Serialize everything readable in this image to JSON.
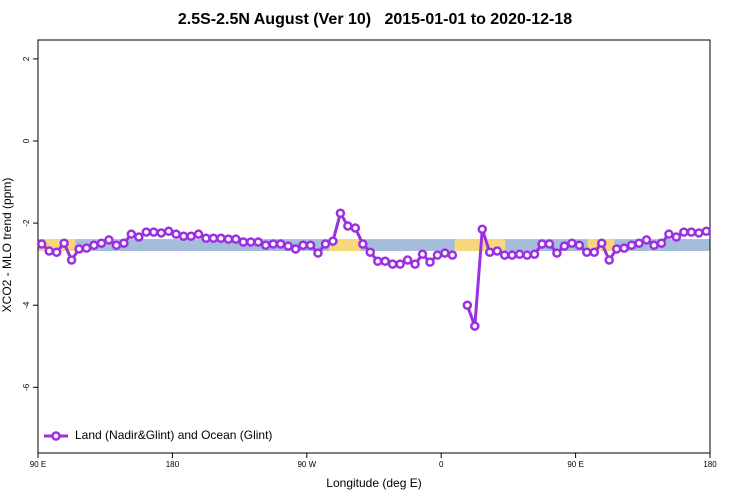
{
  "chart_data": {
    "type": "line",
    "title": "2.5S-2.5N August (Ver 10)   2015-01-01 to 2020-12-18",
    "x_label": "Longitude (deg E)",
    "y_label": "XCO2 - MLO trend (ppm)",
    "xlim": [
      90,
      540
    ],
    "xticks": [
      {
        "value": 90,
        "label": "90 E"
      },
      180,
      {
        "value": 270,
        "label": "90 W"
      },
      {
        "value": 360,
        "label": "0"
      },
      {
        "value": 450,
        "label": "90 E"
      },
      {
        "value": 540,
        "label": "180"
      }
    ],
    "ylim": [
      -7.6,
      2.46
    ],
    "yticks": [
      2,
      0,
      -2,
      -4,
      -6
    ],
    "legend_position": "bottom-left",
    "background_band": {
      "ylim": [
        -2.68,
        -2.39
      ],
      "color": "#a6bcdb",
      "land_color": "#f8d77c",
      "land_ranges": [
        [
          91,
          115
        ],
        [
          285,
          306
        ],
        [
          369,
          403
        ],
        [
          458,
          476
        ]
      ]
    },
    "x": [
      92.5,
      97.5,
      102.5,
      107.5,
      112.5,
      117.5,
      122.5,
      127.5,
      132.5,
      137.5,
      142.5,
      147.5,
      152.5,
      157.5,
      162.5,
      167.5,
      172.5,
      177.5,
      182.5,
      187.5,
      192.5,
      197.5,
      202.5,
      207.5,
      212.5,
      217.5,
      222.5,
      227.5,
      232.5,
      237.5,
      242.5,
      247.5,
      252.5,
      257.5,
      262.5,
      267.5,
      272.5,
      277.5,
      282.5,
      287.5,
      292.5,
      297.5,
      302.5,
      307.5,
      312.5,
      317.5,
      322.5,
      327.5,
      332.5,
      337.5,
      342.5,
      347.5,
      352.5,
      357.5,
      362.5,
      367.5,
      372.5,
      377.5,
      382.5,
      387.5,
      392.5,
      397.5,
      402.5,
      407.5,
      412.5,
      417.5,
      422.5,
      427.5,
      432.5,
      437.5,
      442.5,
      447.5,
      452.5,
      457.5,
      462.5,
      467.5,
      472.5,
      477.5,
      482.5,
      487.5,
      492.5,
      497.5,
      502.5,
      507.5,
      512.5,
      517.5,
      522.5,
      527.5,
      532.5,
      537.5
    ],
    "series": [
      {
        "name": "Land (Nadir&Glint) and Ocean (Glint)",
        "color": "#9b2fe3",
        "values": [
          -2.51,
          -2.68,
          -2.71,
          -2.49,
          -2.9,
          -2.63,
          -2.61,
          -2.54,
          -2.49,
          -2.41,
          -2.54,
          -2.49,
          -2.27,
          -2.34,
          -2.22,
          -2.22,
          -2.24,
          -2.2,
          -2.27,
          -2.32,
          -2.32,
          -2.27,
          -2.37,
          -2.37,
          -2.37,
          -2.39,
          -2.39,
          -2.46,
          -2.46,
          -2.46,
          -2.54,
          -2.51,
          -2.51,
          -2.56,
          -2.63,
          -2.54,
          -2.54,
          -2.73,
          -2.51,
          -2.44,
          -1.76,
          -2.07,
          -2.12,
          -2.51,
          -2.71,
          -2.93,
          -2.93,
          -3.0,
          -3.0,
          -2.9,
          -3.0,
          -2.76,
          -2.95,
          -2.78,
          -2.73,
          -2.78,
          null,
          -4.0,
          -4.51,
          -2.15,
          -2.71,
          -2.68,
          -2.78,
          -2.78,
          -2.76,
          -2.78,
          -2.76,
          -2.51,
          -2.51,
          -2.73,
          -2.56,
          -2.49,
          -2.54,
          -2.71,
          -2.71,
          -2.49,
          -2.9,
          -2.63,
          -2.61,
          -2.54,
          -2.49,
          -2.41,
          -2.54,
          -2.49,
          -2.27,
          -2.34,
          -2.22,
          -2.22,
          -2.24,
          -2.2
        ]
      }
    ]
  }
}
